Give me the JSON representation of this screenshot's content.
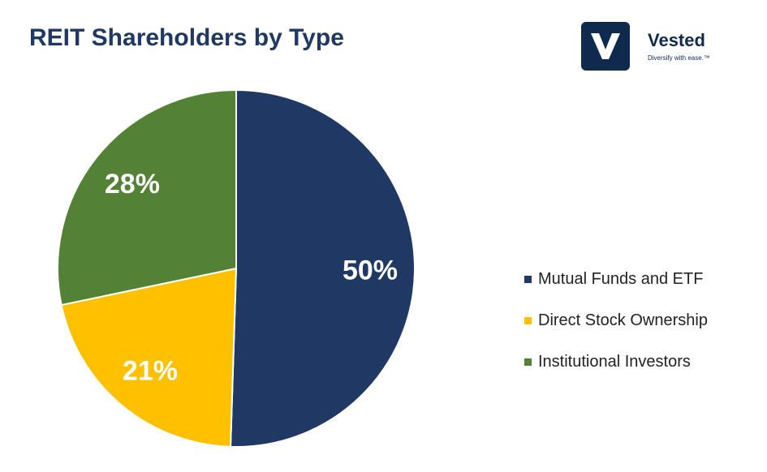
{
  "header": {
    "title": "REIT Shareholders by Type"
  },
  "logo": {
    "name": "Vested",
    "tagline": "Diversify with ease.™",
    "icon": "v-logo-icon",
    "color": "#0f2a4d"
  },
  "chart_data": {
    "type": "pie",
    "title": "REIT Shareholders by Type",
    "slices": [
      {
        "name": "Mutual Funds and ETF",
        "value": 50,
        "label": "50%",
        "color": "#203864"
      },
      {
        "name": "Direct Stock Ownership",
        "value": 21,
        "label": "21%",
        "color": "#ffc000"
      },
      {
        "name": "Institutional Investors",
        "value": 28,
        "label": "28%",
        "color": "#538135"
      }
    ],
    "start": "12 o'clock",
    "direction": "clockwise",
    "legend_position": "right"
  }
}
